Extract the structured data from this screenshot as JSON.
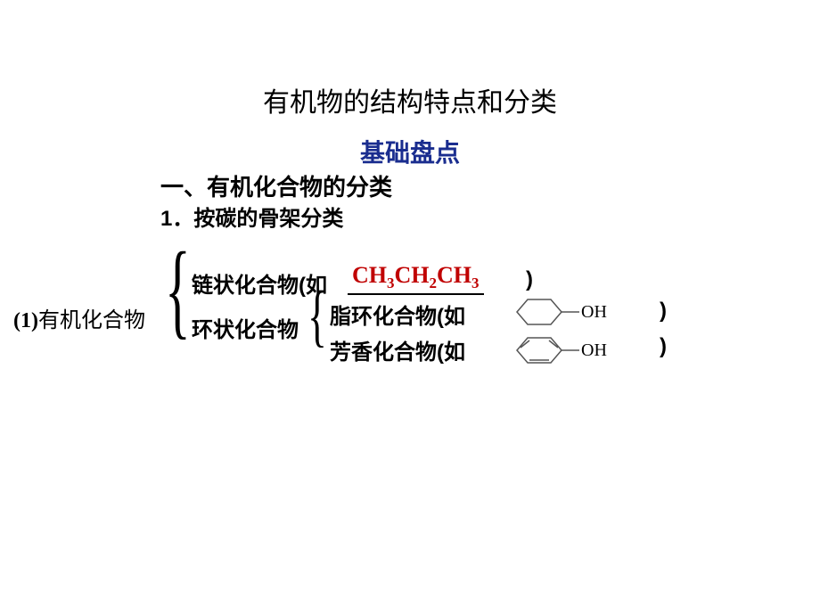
{
  "title": "有机物的结构特点和分类",
  "subtitle": "基础盘点",
  "subtitle_color": "#1a2d8f",
  "heading1": "一、有机化合物的分类",
  "heading2": "1．按碳的骨架分类",
  "root": {
    "prefix": "(1)",
    "label": "有机化合物"
  },
  "branch1": {
    "label_a": "链状化合物(如",
    "example_html": "CH<sub>3</sub>CH<sub>2</sub>CH<sub>3</sub>",
    "example_color": "#c00000",
    "close": ")"
  },
  "branch2": {
    "label": "环状化合物",
    "sub_a": {
      "label": "脂环化合物(如",
      "oh": "OH",
      "close": ")"
    },
    "sub_b": {
      "label": "芳香化合物(如",
      "oh": "OH",
      "close": ")"
    }
  },
  "colors": {
    "text": "#000000",
    "subtitle": "#1a2d8f",
    "formula": "#c00000",
    "background": "#ffffff",
    "chem_stroke": "#555555"
  },
  "fonts": {
    "body": "SimSun",
    "heading": "SimHei",
    "formula": "Times New Roman"
  }
}
